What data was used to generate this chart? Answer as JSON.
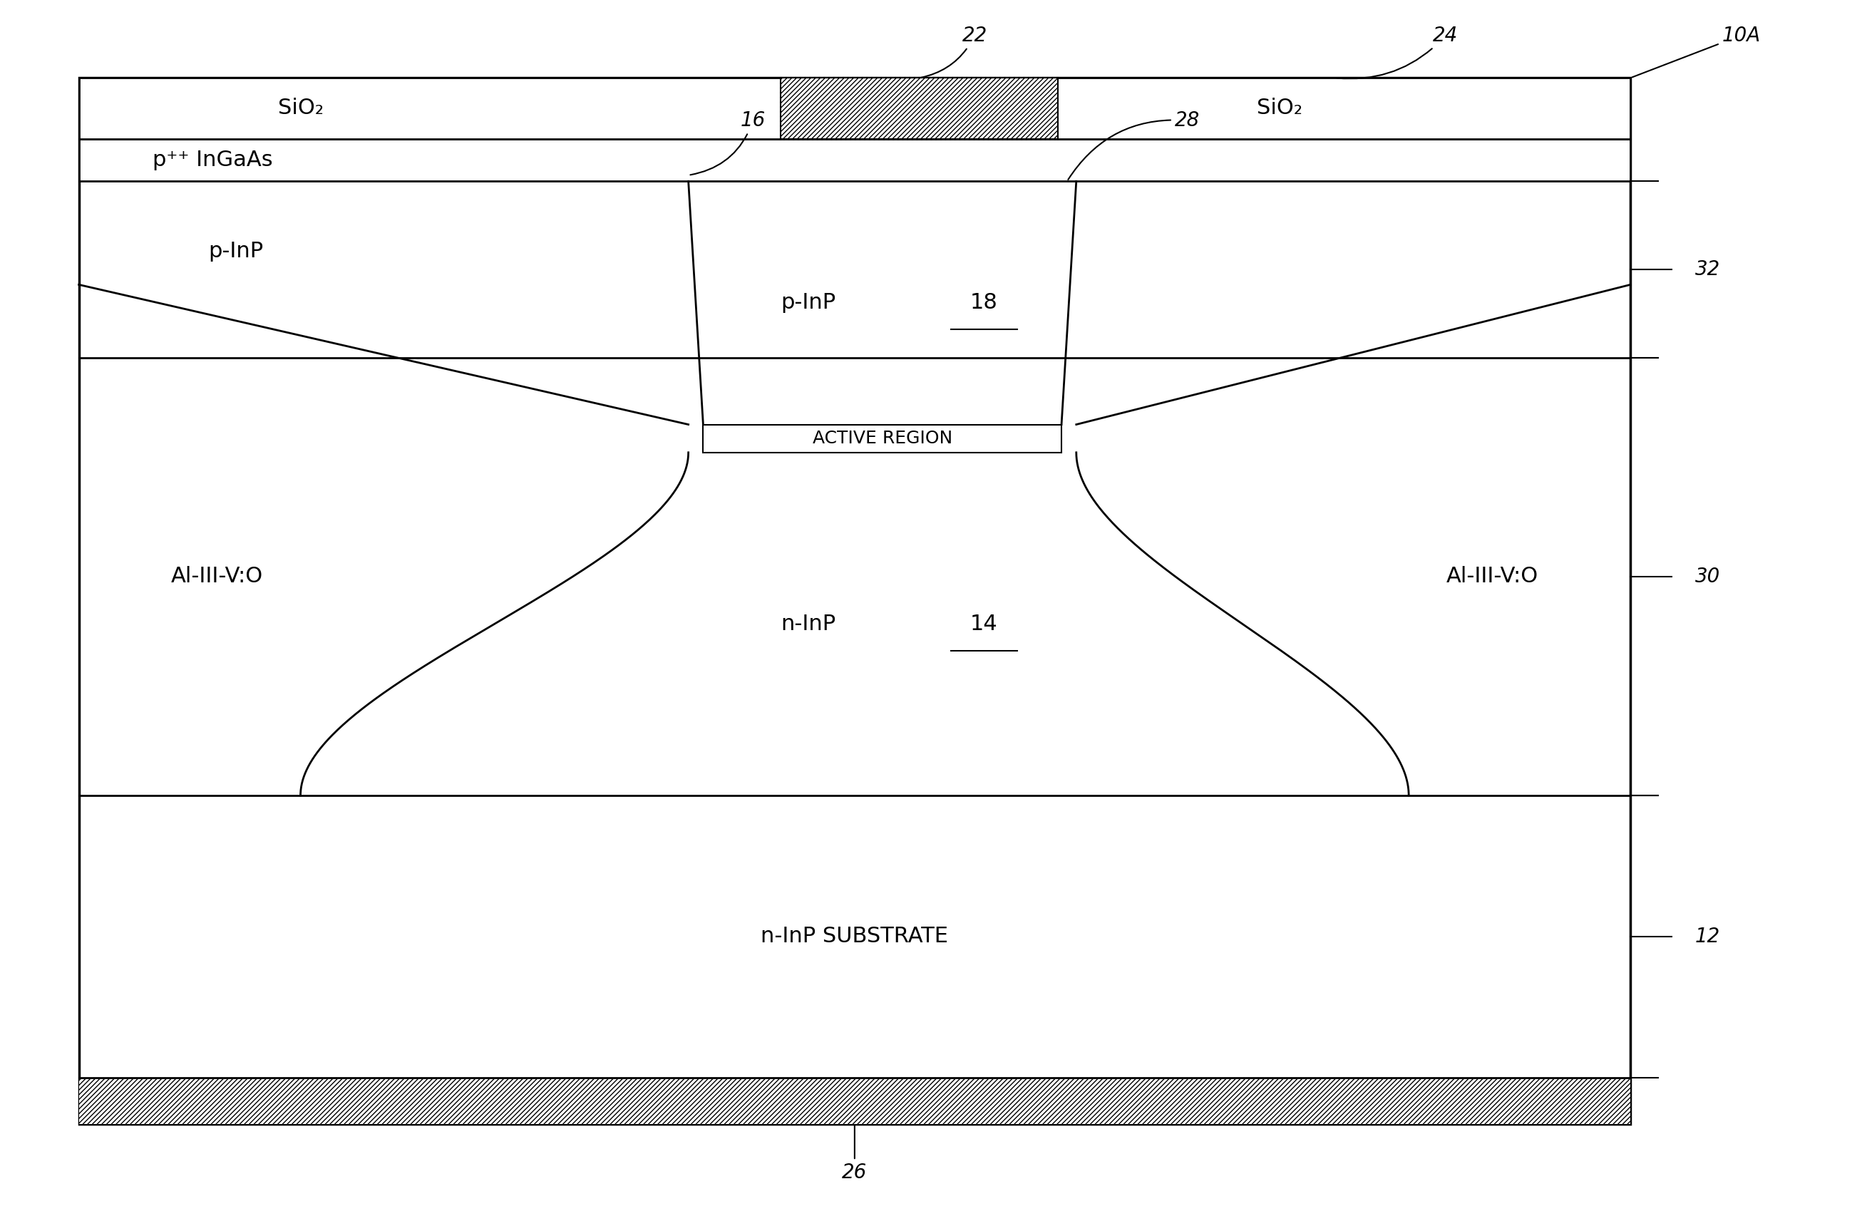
{
  "fig_width": 26.05,
  "fig_height": 17.2,
  "bg_color": "#ffffff",
  "labels": {
    "sio2_left": "SiO₂",
    "sio2_right": "SiO₂",
    "ingaas": "p⁺⁺ InGaAs",
    "p_inp_outer": "p-InP",
    "p_inp_inner": "p-InP",
    "active": "ACTIVE REGION",
    "n_inp": "n-InP",
    "al_left": "Al-III-V:O",
    "al_right": "Al-III-V:O",
    "substrate": "n-InP SUBSTRATE",
    "ref_22": "22",
    "ref_24": "24",
    "ref_10a": "10A",
    "ref_16": "16",
    "ref_28": "28",
    "ref_18": "18",
    "ref_14": "14",
    "ref_32": "32",
    "ref_30": "30",
    "ref_12": "12",
    "ref_26": "26"
  }
}
